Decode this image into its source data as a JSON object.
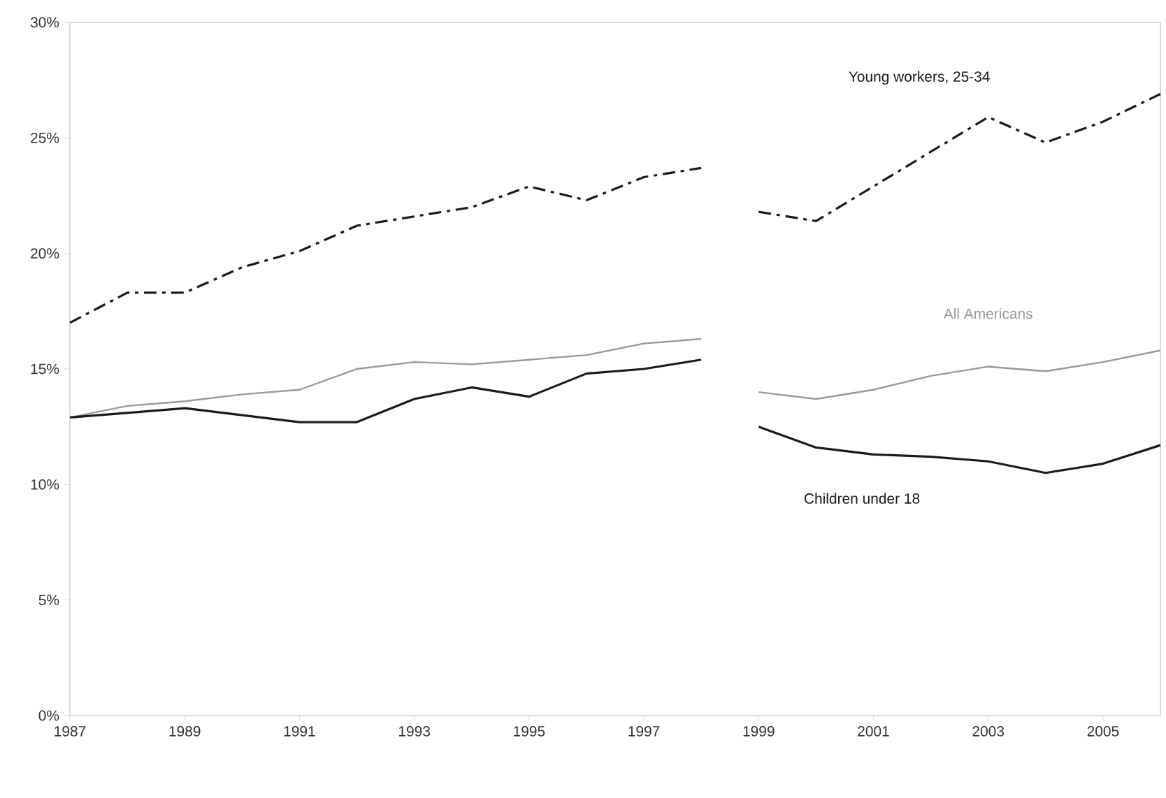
{
  "chart_data": {
    "type": "line",
    "x": [
      1987,
      1988,
      1989,
      1990,
      1991,
      1992,
      1993,
      1994,
      1995,
      1996,
      1997,
      1998,
      1998.5,
      1999,
      2000,
      2001,
      2002,
      2003,
      2004,
      2005,
      2006
    ],
    "series": [
      {
        "name": "Young workers, 25-34",
        "color": "#1a1a1a",
        "line_style": "dashed",
        "values": [
          17.0,
          18.3,
          18.3,
          19.4,
          20.1,
          21.2,
          21.6,
          22.0,
          22.9,
          22.3,
          23.3,
          23.7,
          null,
          21.8,
          21.4,
          22.9,
          24.4,
          25.9,
          24.8,
          25.7,
          26.9
        ]
      },
      {
        "name": "All Americans",
        "color": "#999999",
        "line_style": "solid",
        "values": [
          12.9,
          13.4,
          13.6,
          13.9,
          14.1,
          15.0,
          15.3,
          15.2,
          15.4,
          15.6,
          16.1,
          16.3,
          null,
          14.0,
          13.7,
          14.1,
          14.7,
          15.1,
          14.9,
          15.3,
          15.8
        ]
      },
      {
        "name": "Children under 18",
        "color": "#1a1a1a",
        "line_style": "solid",
        "values": [
          12.9,
          13.1,
          13.3,
          13.0,
          12.7,
          12.7,
          13.7,
          14.2,
          13.8,
          14.8,
          15.0,
          15.4,
          null,
          12.5,
          11.6,
          11.3,
          11.2,
          11.0,
          10.5,
          10.9,
          11.7
        ]
      }
    ],
    "xlim": [
      1987,
      2006
    ],
    "xticks": [
      1987,
      1989,
      1991,
      1993,
      1995,
      1997,
      1999,
      2001,
      2003,
      2005
    ],
    "ylim": [
      0,
      30
    ],
    "yticks": [
      {
        "value": 0,
        "label": "0%"
      },
      {
        "value": 5,
        "label": "5%"
      },
      {
        "value": 10,
        "label": "10%"
      },
      {
        "value": 15,
        "label": "15%"
      },
      {
        "value": 20,
        "label": "20%"
      },
      {
        "value": 25,
        "label": "25%"
      },
      {
        "value": 30,
        "label": "30%"
      }
    ],
    "grid": false,
    "legend": false
  }
}
